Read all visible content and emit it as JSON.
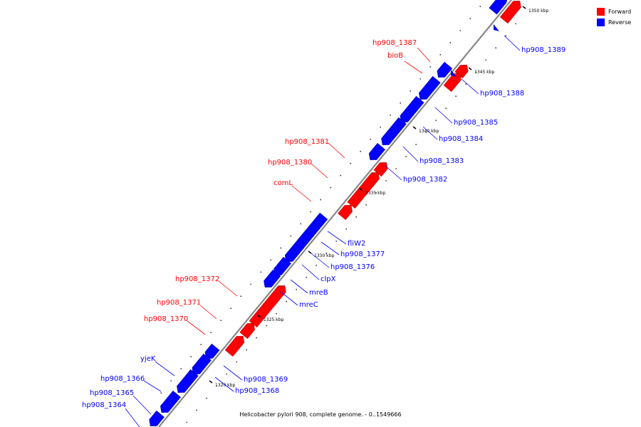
{
  "caption": "Helicobacter pylori 908, complete genome. - 0..1549666",
  "legend": [
    {
      "label": "Forward",
      "color": "#ff0000"
    },
    {
      "label": "Reverse",
      "color": "#0000ff"
    }
  ],
  "colors": {
    "forward": "#ff0000",
    "reverse": "#0000ff",
    "backbone": "#888888"
  },
  "ticks": [
    "1350 kbp",
    "1345 kbp",
    "1340 kbp",
    "1335 kbp",
    "1330 kbp",
    "1325 kbp",
    "1320 kbp"
  ],
  "genes": [
    {
      "name": "hp908_1387",
      "strand": "forward"
    },
    {
      "name": "bioB",
      "strand": "forward"
    },
    {
      "name": "hp908_1381",
      "strand": "forward"
    },
    {
      "name": "hp908_1380",
      "strand": "forward"
    },
    {
      "name": "comL",
      "strand": "forward"
    },
    {
      "name": "hp908_1372",
      "strand": "forward"
    },
    {
      "name": "hp908_1371",
      "strand": "forward"
    },
    {
      "name": "hp908_1370",
      "strand": "forward"
    },
    {
      "name": "hp908_1389",
      "strand": "reverse"
    },
    {
      "name": "hp908_1388",
      "strand": "reverse"
    },
    {
      "name": "hp908_1385",
      "strand": "reverse"
    },
    {
      "name": "hp908_1384",
      "strand": "reverse"
    },
    {
      "name": "hp908_1383",
      "strand": "reverse"
    },
    {
      "name": "hp908_1382",
      "strand": "reverse"
    },
    {
      "name": "fliW2",
      "strand": "reverse"
    },
    {
      "name": "hp908_1377",
      "strand": "reverse"
    },
    {
      "name": "hp908_1376",
      "strand": "reverse"
    },
    {
      "name": "clpX",
      "strand": "reverse"
    },
    {
      "name": "mreB",
      "strand": "reverse"
    },
    {
      "name": "mreC",
      "strand": "reverse"
    },
    {
      "name": "yjeK",
      "strand": "reverse"
    },
    {
      "name": "hp908_1369",
      "strand": "reverse"
    },
    {
      "name": "hp908_1368",
      "strand": "reverse"
    },
    {
      "name": "hp908_1366",
      "strand": "reverse"
    },
    {
      "name": "hp908_1365",
      "strand": "reverse"
    },
    {
      "name": "hp908_1364",
      "strand": "reverse"
    }
  ]
}
